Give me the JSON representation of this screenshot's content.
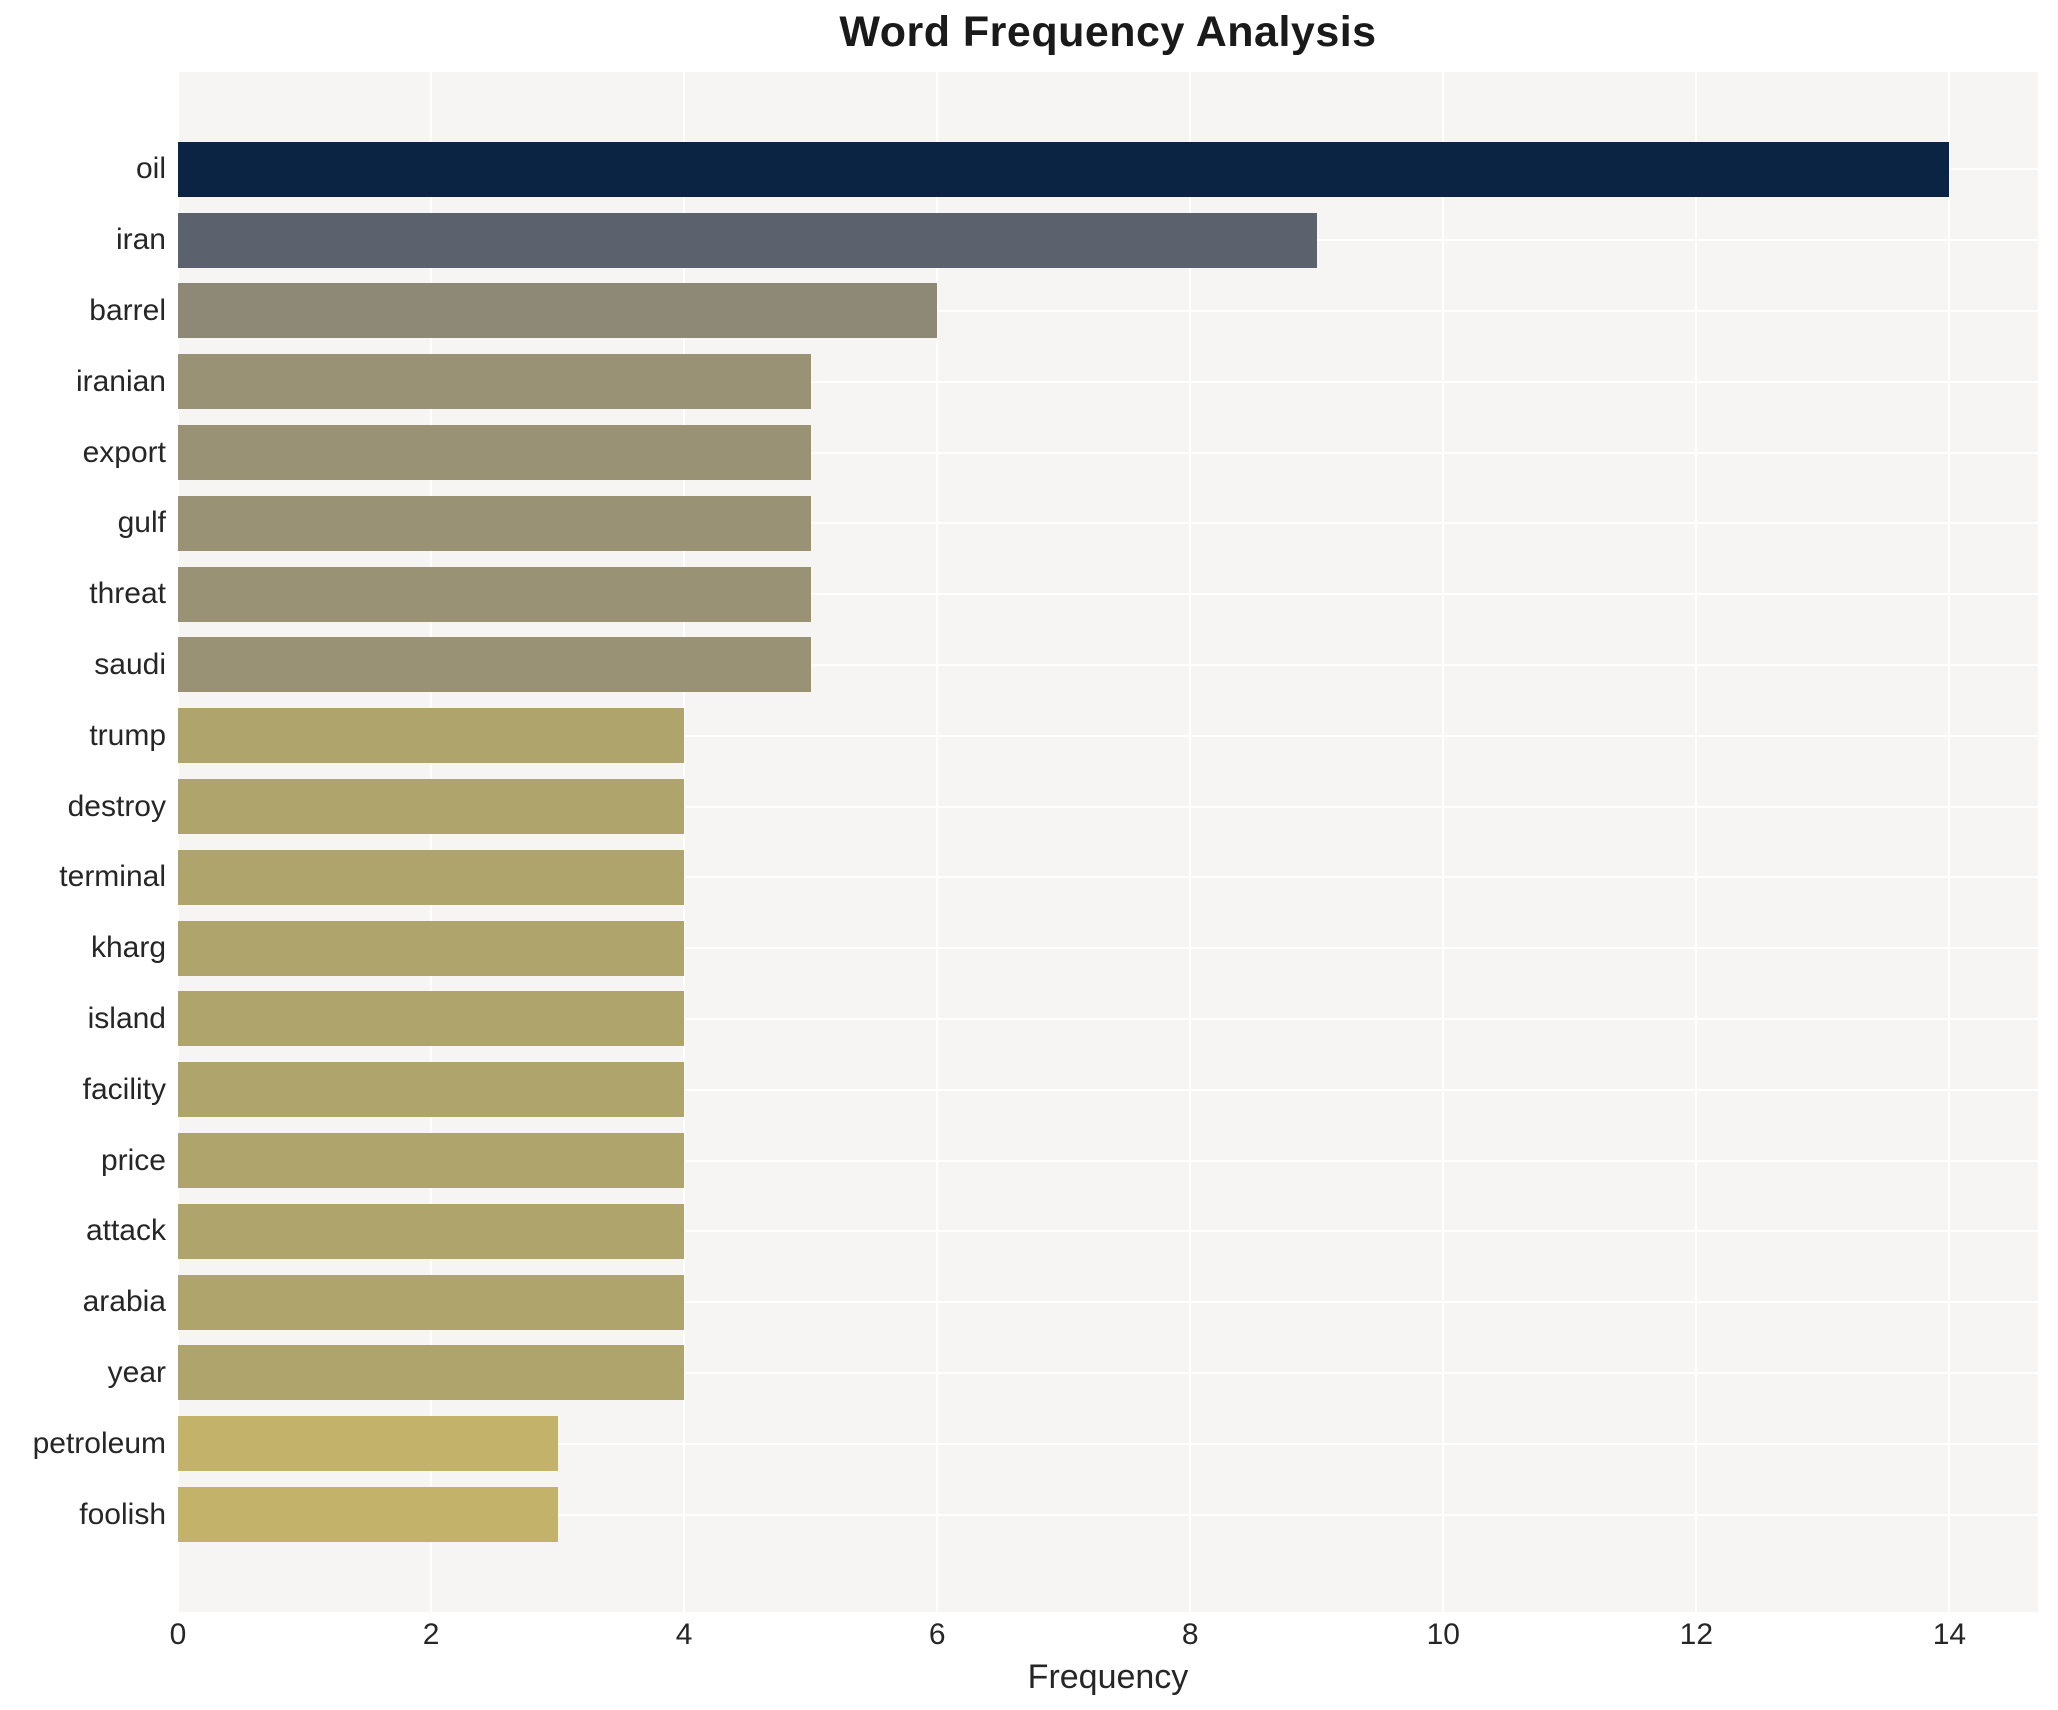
{
  "chart_data": {
    "type": "bar",
    "orientation": "horizontal",
    "title": "Word Frequency Analysis",
    "xlabel": "Frequency",
    "ylabel": "",
    "categories": [
      "oil",
      "iran",
      "barrel",
      "iranian",
      "export",
      "gulf",
      "threat",
      "saudi",
      "trump",
      "destroy",
      "terminal",
      "kharg",
      "island",
      "facility",
      "price",
      "attack",
      "arabia",
      "year",
      "petroleum",
      "foolish"
    ],
    "values": [
      14,
      9,
      6,
      5,
      5,
      5,
      5,
      5,
      4,
      4,
      4,
      4,
      4,
      4,
      4,
      4,
      4,
      4,
      3,
      3
    ],
    "bar_colors": [
      "#0c2444",
      "#5c616e",
      "#8e8977",
      "#9a9274",
      "#9a9274",
      "#9a9274",
      "#9a9274",
      "#9a9274",
      "#afa46c",
      "#afa46c",
      "#afa46c",
      "#afa46c",
      "#afa46c",
      "#afa46c",
      "#afa46c",
      "#afa46c",
      "#afa46c",
      "#afa46c",
      "#c3b269",
      "#c3b269"
    ],
    "xticks": [
      0,
      2,
      4,
      6,
      8,
      10,
      12,
      14
    ],
    "xlim": [
      0,
      14.7
    ],
    "grid": true,
    "legend": "none",
    "plot_background": "#f6f5f3",
    "grid_color": "#ffffff",
    "text_color": "#262626",
    "title_color": "#1a1a1a"
  }
}
